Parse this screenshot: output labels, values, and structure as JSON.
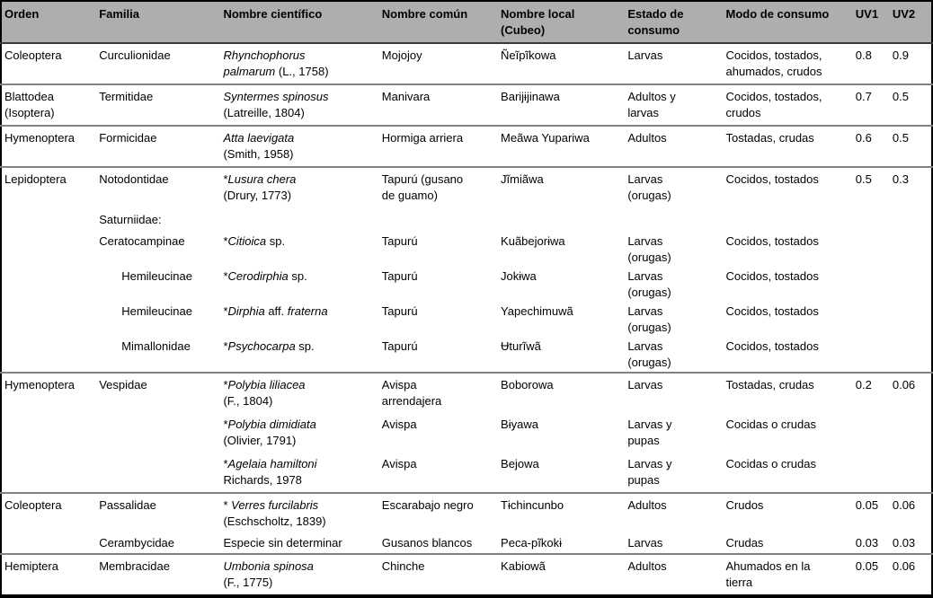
{
  "table": {
    "columns": [
      "Orden",
      "Familia",
      "Nombre científico",
      "Nombre común",
      "Nombre local\n(Cubeo)",
      "Estado de\nconsumo",
      "Modo de consumo",
      "UV1",
      "UV2"
    ],
    "rows": [
      {
        "orden": "Coleoptera",
        "familia": "Curculionidae",
        "sci": [
          {
            "t": "Rhynchophorus\npalmarum",
            "i": true
          },
          {
            "t": " (L., 1758)",
            "i": false
          }
        ],
        "comun": "Mojojoy",
        "local": "Ñeĩpĩkowa",
        "estado": "Larvas",
        "modo": "Cocidos, tostados,\nahumados, crudos",
        "uv1": "0.8",
        "uv2": "0.9"
      },
      {
        "orden": "Blattodea\n(Isoptera)",
        "familia": "Termitidae",
        "sci": [
          {
            "t": "Syntermes spinosus",
            "i": true
          },
          {
            "t": "\n(Latreille, 1804)",
            "i": false
          }
        ],
        "comun": "Manivara",
        "local": "Barijɨjinawa",
        "estado": "Adultos y\nlarvas",
        "modo": "Cocidos, tostados,\ncrudos",
        "uv1": "0.7",
        "uv2": "0.5"
      },
      {
        "orden": "Hymenoptera",
        "familia": "Formicidae",
        "sci": [
          {
            "t": "Atta laevigata",
            "i": true
          },
          {
            "t": "\n(Smith, 1958)",
            "i": false
          }
        ],
        "comun": "Hormiga arriera",
        "local": "Meãwa Yupariwa",
        "estado": "Adultos",
        "modo": "Tostadas, crudas",
        "uv1": "0.6",
        "uv2": "0.5"
      },
      {
        "orden": "Lepidoptera",
        "familia": "Notodontidae",
        "sci": [
          {
            "t": "*",
            "i": false
          },
          {
            "t": "Lusura chera",
            "i": true
          },
          {
            "t": "\n(Drury, 1773)",
            "i": false
          }
        ],
        "comun": "Tapurú (gusano\nde guamo)",
        "local": "Jĩmiãwa",
        "estado": "Larvas\n(orugas)",
        "modo": "Cocidos, tostados",
        "uv1": "0.5",
        "uv2": "0.3"
      },
      {
        "familia": "Saturniidae:"
      },
      {
        "familia": "Ceratocampinae",
        "sci": [
          {
            "t": "*",
            "i": false
          },
          {
            "t": "Citioica",
            "i": true
          },
          {
            "t": " sp.",
            "i": false
          }
        ],
        "comun": "Tapurú",
        "local": "Kuãbejorɨwa",
        "estado": "Larvas\n(orugas)",
        "modo": "Cocidos, tostados"
      },
      {
        "familia": "Hemileucinae",
        "sci": [
          {
            "t": "*",
            "i": false
          },
          {
            "t": "Cerodirphia",
            "i": true
          },
          {
            "t": " sp.",
            "i": false
          }
        ],
        "comun": "Tapurú",
        "local": "Jokɨwa",
        "estado": "Larvas\n(orugas)",
        "modo": "Cocidos, tostados"
      },
      {
        "familia": "Hemileucinae",
        "sci": [
          {
            "t": "*",
            "i": false
          },
          {
            "t": "Dirphia",
            "i": true
          },
          {
            "t": " aff. ",
            "i": false
          },
          {
            "t": "fraterna",
            "i": true
          }
        ],
        "comun": "Tapurú",
        "local": "Yapechimuwã",
        "estado": "Larvas\n(orugas)",
        "modo": "Cocidos, tostados"
      },
      {
        "familia": "Mimallonidae",
        "sci": [
          {
            "t": "*",
            "i": false
          },
          {
            "t": "Psychocarpa",
            "i": true
          },
          {
            "t": " sp.",
            "i": false
          }
        ],
        "comun": "Tapurú",
        "local": "Ʉturĩwã",
        "estado": "Larvas\n(orugas)",
        "modo": "Cocidos, tostados"
      },
      {
        "orden": "Hymenoptera",
        "familia": "Vespidae",
        "sci": [
          {
            "t": "*",
            "i": false
          },
          {
            "t": "Polybia liliacea",
            "i": true
          },
          {
            "t": "\n(F., 1804)",
            "i": false
          }
        ],
        "comun": "Avispa\narrendajera",
        "local": "Boborowa",
        "estado": "Larvas",
        "modo": "Tostadas, crudas",
        "uv1": "0.2",
        "uv2": "0.06"
      },
      {
        "sci": [
          {
            "t": "*",
            "i": false
          },
          {
            "t": "Polybia dimidiata",
            "i": true
          },
          {
            "t": "\n(Olivier, 1791)",
            "i": false
          }
        ],
        "comun": "Avispa",
        "local": "Bɨyawa",
        "estado": "Larvas y\npupas",
        "modo": "Cocidas o crudas"
      },
      {
        "sci": [
          {
            "t": "*",
            "i": false
          },
          {
            "t": "Agelaia hamiltoni",
            "i": true
          },
          {
            "t": "\nRichards, 1978",
            "i": false
          }
        ],
        "comun": "Avispa",
        "local": "Bejowa",
        "estado": "Larvas y\npupas",
        "modo": "Cocidas o crudas"
      },
      {
        "orden": "Coleoptera",
        "familia": "Passalidae",
        "sci": [
          {
            "t": "* ",
            "i": false
          },
          {
            "t": "Verres furcilabris",
            "i": true
          },
          {
            "t": "\n(Eschscholtz, 1839)",
            "i": false
          }
        ],
        "comun": "Escarabajo negro",
        "local": "Tɨchincunbo",
        "estado": "Adultos",
        "modo": "Crudos",
        "uv1": "0.05",
        "uv2": "0.06"
      },
      {
        "familia": "Cerambycidae",
        "sci": [
          {
            "t": "Especie sin determinar",
            "i": false
          }
        ],
        "comun": "Gusanos blancos",
        "local": "Peca-pĩkokɨ",
        "estado": "Larvas",
        "modo": "Crudas",
        "uv1": "0.03",
        "uv2": "0.03"
      },
      {
        "orden": "Hemiptera",
        "familia": "Membracidae",
        "sci": [
          {
            "t": "Umbonia spinosa",
            "i": true
          },
          {
            "t": "\n(F., 1775)",
            "i": false
          }
        ],
        "comun": "Chinche",
        "local": "Kabiowã",
        "estado": "Adultos",
        "modo": "Ahumados en la\ntierra",
        "uv1": "0.05",
        "uv2": "0.06"
      }
    ]
  }
}
